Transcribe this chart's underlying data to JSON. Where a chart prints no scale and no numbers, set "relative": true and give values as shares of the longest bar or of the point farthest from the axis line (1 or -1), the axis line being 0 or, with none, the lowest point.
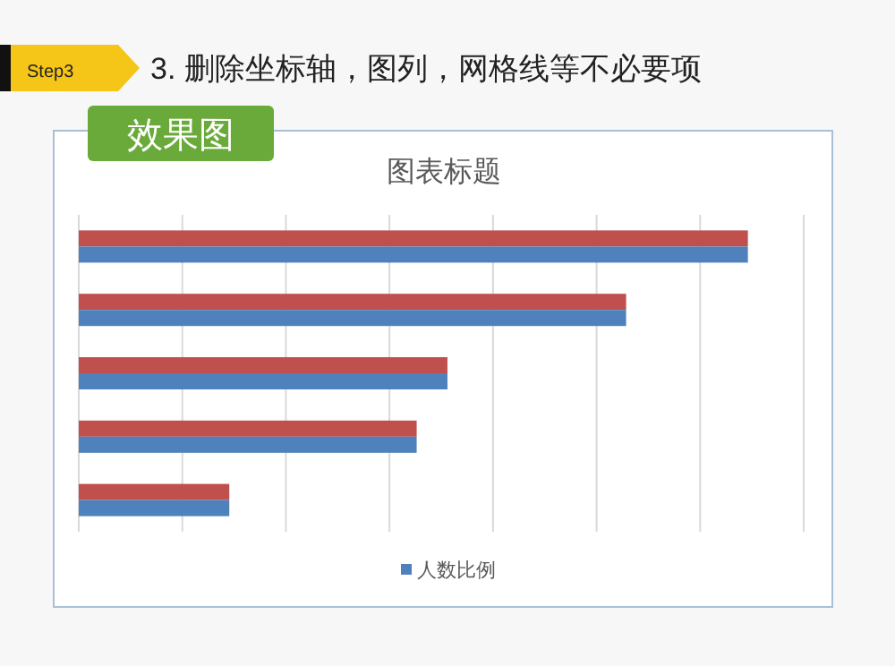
{
  "chart_data": {
    "type": "bar",
    "orientation": "horizontal",
    "relative": true,
    "title": "图表标题",
    "annotations": [
      "Step3",
      "3. 删除坐标轴，图列，网格线等不必要项",
      "效果图"
    ],
    "categories": [
      null,
      null,
      null,
      null,
      null
    ],
    "series": [
      {
        "color": "#c0504d",
        "values": [
          1,
          0.818,
          0.551,
          0.505,
          0.225
        ]
      },
      {
        "name": "人数比例",
        "color": "#4f81bd",
        "values": [
          1,
          0.818,
          0.551,
          0.505,
          0.225
        ]
      }
    ],
    "grid": "x",
    "legend": "bottom"
  }
}
